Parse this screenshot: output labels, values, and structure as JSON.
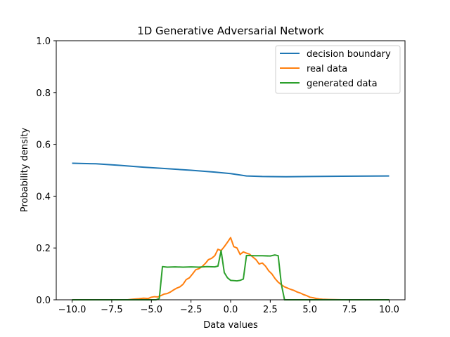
{
  "chart_data": {
    "type": "line",
    "title": "1D Generative Adversarial Network",
    "xlabel": "Data values",
    "ylabel": "Probability density",
    "xlim": [
      -11,
      11
    ],
    "ylim": [
      0,
      1.0
    ],
    "xticks": [
      -10,
      -7.5,
      -5,
      -2.5,
      0,
      2.5,
      5,
      7.5,
      10
    ],
    "xtick_labels": [
      "−10.0",
      "−7.5",
      "−5.0",
      "−2.5",
      "0.0",
      "2.5",
      "5.0",
      "7.5",
      "10.0"
    ],
    "yticks": [
      0,
      0.2,
      0.4,
      0.6,
      0.8,
      1.0
    ],
    "ytick_labels": [
      "0.0",
      "0.2",
      "0.4",
      "0.6",
      "0.8",
      "1.0"
    ],
    "grid": false,
    "legend_position": "top-right",
    "series": [
      {
        "name": "decision boundary",
        "color": "#1f77b4",
        "x": [
          -10,
          -8.5,
          -7,
          -5.5,
          -4,
          -2.5,
          -1,
          0,
          1,
          2,
          3.5,
          5,
          7,
          10
        ],
        "y": [
          0.527,
          0.525,
          0.519,
          0.512,
          0.506,
          0.5,
          0.493,
          0.487,
          0.478,
          0.476,
          0.475,
          0.476,
          0.477,
          0.478
        ]
      },
      {
        "name": "real data",
        "color": "#ff7f0e",
        "x": [
          -10,
          -6.5,
          -6.2,
          -5.8,
          -5.5,
          -5.2,
          -5,
          -4.8,
          -4.6,
          -4.4,
          -4.2,
          -4,
          -3.8,
          -3.6,
          -3.4,
          -3.2,
          -3,
          -2.8,
          -2.6,
          -2.4,
          -2.2,
          -2,
          -1.8,
          -1.6,
          -1.4,
          -1.2,
          -1,
          -0.8,
          -0.6,
          -0.4,
          -0.2,
          0,
          0.2,
          0.4,
          0.6,
          0.8,
          1,
          1.2,
          1.4,
          1.6,
          1.8,
          2,
          2.2,
          2.4,
          2.6,
          2.8,
          3,
          3.2,
          3.4,
          3.6,
          3.8,
          4,
          4.2,
          4.4,
          4.6,
          4.8,
          5,
          5.2,
          5.4,
          5.6,
          5.8,
          6.2,
          7,
          10
        ],
        "y": [
          0,
          0,
          0.002,
          0.004,
          0.006,
          0.005,
          0.01,
          0.012,
          0.011,
          0.016,
          0.022,
          0.024,
          0.03,
          0.038,
          0.045,
          0.05,
          0.06,
          0.078,
          0.085,
          0.1,
          0.116,
          0.12,
          0.128,
          0.14,
          0.155,
          0.16,
          0.17,
          0.195,
          0.19,
          0.205,
          0.222,
          0.24,
          0.205,
          0.2,
          0.175,
          0.185,
          0.18,
          0.176,
          0.165,
          0.155,
          0.138,
          0.142,
          0.13,
          0.112,
          0.1,
          0.082,
          0.068,
          0.058,
          0.05,
          0.045,
          0.04,
          0.036,
          0.03,
          0.026,
          0.02,
          0.016,
          0.01,
          0.008,
          0.005,
          0.003,
          0.002,
          0.001,
          0,
          0
        ]
      },
      {
        "name": "generated data",
        "color": "#2ca02c",
        "x": [
          -10,
          -4.7,
          -4.5,
          -4.3,
          -4,
          -3.5,
          -3,
          -2.5,
          -2,
          -1.5,
          -1,
          -0.8,
          -0.6,
          -0.4,
          -0.2,
          0,
          0.2,
          0.4,
          0.6,
          0.8,
          1,
          1.5,
          2,
          2.5,
          2.8,
          3,
          3.2,
          3.4,
          10
        ],
        "y": [
          0,
          0,
          0.005,
          0.128,
          0.126,
          0.127,
          0.126,
          0.127,
          0.126,
          0.128,
          0.127,
          0.13,
          0.19,
          0.105,
          0.085,
          0.075,
          0.074,
          0.073,
          0.075,
          0.08,
          0.171,
          0.17,
          0.17,
          0.169,
          0.173,
          0.17,
          0.06,
          0,
          0
        ]
      }
    ]
  }
}
